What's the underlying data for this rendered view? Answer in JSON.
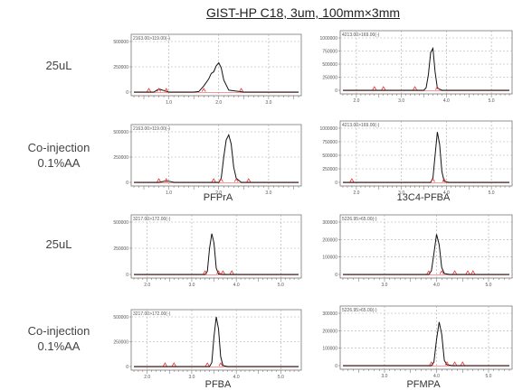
{
  "title": "GIST-HP C18, 3um, 100mm×3mm",
  "row_labels": [
    {
      "line1": "25uL",
      "line2": ""
    },
    {
      "line1": "Co-injection",
      "line2": "0.1%AA"
    },
    {
      "line1": "25uL",
      "line2": ""
    },
    {
      "line1": "Co-injection",
      "line2": "0.1%AA"
    }
  ],
  "compound_labels": [
    "PFPrA",
    "13C4-PFBA",
    "PFBA",
    "PFMPA"
  ],
  "chart_data": [
    {
      "type": "line",
      "panel": "row1-left",
      "header": "2163.00>119.00(-)",
      "xlim": [
        0.3,
        3.6
      ],
      "ylim": [
        0,
        500000
      ],
      "xticks": [
        1.0,
        2.0,
        3.0
      ],
      "xtick_labels": [
        "1.0",
        "2.0",
        "3.0"
      ],
      "yticks": [
        0,
        250000,
        500000
      ],
      "ytick_labels": [
        "0",
        "250000",
        "500000"
      ],
      "x": [
        0.3,
        0.7,
        0.75,
        0.8,
        0.9,
        1.0,
        1.1,
        1.5,
        1.6,
        1.7,
        1.8,
        1.85,
        1.9,
        1.95,
        2.0,
        2.05,
        2.1,
        2.2,
        2.5,
        3.6
      ],
      "y": [
        0,
        0,
        15000,
        30000,
        15000,
        0,
        0,
        0,
        5000,
        60000,
        130000,
        185000,
        200000,
        260000,
        290000,
        240000,
        120000,
        20000,
        0,
        0
      ],
      "markers": [
        0.6,
        0.8,
        0.95,
        1.7,
        2.45
      ]
    },
    {
      "type": "line",
      "panel": "row1-right",
      "header": "4213.00>169.00(-)",
      "xlim": [
        1.7,
        5.4
      ],
      "ylim": [
        0,
        1000000
      ],
      "xticks": [
        2.0,
        3.0,
        4.0,
        5.0
      ],
      "xtick_labels": [
        "2.0",
        "3.0",
        "4.0",
        "5.0"
      ],
      "yticks": [
        0,
        250000,
        500000,
        750000,
        1000000
      ],
      "ytick_labels": [
        "0",
        "250000",
        "500000",
        "750000",
        "1000000"
      ],
      "x": [
        1.7,
        3.5,
        3.55,
        3.6,
        3.65,
        3.7,
        3.75,
        3.8,
        3.9,
        5.4
      ],
      "y": [
        0,
        0,
        50000,
        300000,
        720000,
        800000,
        350000,
        40000,
        0,
        0
      ],
      "markers": [
        2.4,
        2.6,
        3.3,
        3.8
      ]
    },
    {
      "type": "line",
      "panel": "row2-left",
      "header": "2163.00>119.00(-)",
      "xlim": [
        0.3,
        3.6
      ],
      "ylim": [
        0,
        500000
      ],
      "xticks": [
        1.0,
        2.0,
        3.0
      ],
      "xtick_labels": [
        "1.0",
        "2.0",
        "3.0"
      ],
      "yticks": [
        0,
        250000,
        500000
      ],
      "ytick_labels": [
        "0",
        "250000",
        "500000"
      ],
      "x": [
        0.3,
        0.8,
        0.9,
        1.0,
        1.1,
        2.0,
        2.05,
        2.1,
        2.15,
        2.2,
        2.25,
        2.3,
        2.35,
        2.45,
        2.6,
        3.6
      ],
      "y": [
        0,
        0,
        10000,
        12000,
        0,
        0,
        40000,
        250000,
        420000,
        470000,
        380000,
        150000,
        40000,
        0,
        0,
        0
      ],
      "markers": [
        0.8,
        0.95,
        1.9,
        2.05,
        2.35,
        2.6
      ]
    },
    {
      "type": "line",
      "panel": "row2-right",
      "header": "4213.00>169.00(-)",
      "xlim": [
        1.7,
        5.4
      ],
      "ylim": [
        0,
        1000000
      ],
      "xticks": [
        2.0,
        3.0,
        4.0,
        5.0
      ],
      "xtick_labels": [
        "2.0",
        "3.0",
        "4.0",
        "5.0"
      ],
      "yticks": [
        0,
        250000,
        500000,
        750000,
        1000000
      ],
      "ytick_labels": [
        "0",
        "250000",
        "500000",
        "750000",
        "1000000"
      ],
      "x": [
        1.7,
        3.65,
        3.7,
        3.75,
        3.8,
        3.85,
        3.9,
        3.95,
        4.05,
        5.4
      ],
      "y": [
        0,
        0,
        80000,
        500000,
        930000,
        700000,
        200000,
        20000,
        0,
        0
      ],
      "markers": [
        1.9,
        3.7,
        3.95
      ]
    },
    {
      "type": "line",
      "panel": "row3-left",
      "header": "3217.00>172.00(-)",
      "xlim": [
        1.7,
        5.4
      ],
      "ylim": [
        0,
        500000
      ],
      "xticks": [
        2.0,
        3.0,
        4.0,
        5.0
      ],
      "xtick_labels": [
        "2.0",
        "3.0",
        "4.0",
        "5.0"
      ],
      "yticks": [
        0,
        250000,
        500000
      ],
      "ytick_labels": [
        "0",
        "250000",
        "500000"
      ],
      "x": [
        1.7,
        3.3,
        3.35,
        3.4,
        3.45,
        3.5,
        3.55,
        3.6,
        3.7,
        5.4
      ],
      "y": [
        0,
        0,
        30000,
        250000,
        390000,
        300000,
        60000,
        5000,
        0,
        0
      ],
      "markers": [
        3.3,
        3.6,
        3.7,
        3.9
      ]
    },
    {
      "type": "line",
      "panel": "row3-right",
      "header": "5226.95>65.00(-)",
      "xlim": [
        2.2,
        5.4
      ],
      "ylim": [
        0,
        300000
      ],
      "xticks": [
        3.0,
        4.0,
        5.0
      ],
      "xtick_labels": [
        "3.0",
        "4.0",
        "5.0"
      ],
      "yticks": [
        0,
        100000,
        200000,
        300000
      ],
      "ytick_labels": [
        "0",
        "100000",
        "200000",
        "300000"
      ],
      "x": [
        2.2,
        3.85,
        3.9,
        3.95,
        4.0,
        4.05,
        4.1,
        4.15,
        4.25,
        5.4
      ],
      "y": [
        0,
        0,
        20000,
        120000,
        230000,
        170000,
        40000,
        5000,
        0,
        0
      ],
      "markers": [
        3.85,
        4.1,
        4.35,
        4.6,
        4.7
      ]
    },
    {
      "type": "line",
      "panel": "row4-left",
      "header": "3217.00>172.00(-)",
      "xlim": [
        1.7,
        5.4
      ],
      "ylim": [
        0,
        500000
      ],
      "xticks": [
        2.0,
        3.0,
        4.0,
        5.0
      ],
      "xtick_labels": [
        "2.0",
        "3.0",
        "4.0",
        "5.0"
      ],
      "yticks": [
        0,
        250000,
        500000
      ],
      "ytick_labels": [
        "0",
        "250000",
        "500000"
      ],
      "x": [
        1.7,
        3.4,
        3.45,
        3.5,
        3.55,
        3.6,
        3.65,
        3.7,
        3.8,
        5.4
      ],
      "y": [
        0,
        0,
        40000,
        300000,
        500000,
        380000,
        100000,
        10000,
        0,
        0
      ],
      "markers": [
        2.4,
        2.6,
        3.35,
        3.65
      ]
    },
    {
      "type": "line",
      "panel": "row4-right",
      "header": "5226.95>65.00(-)",
      "xlim": [
        2.2,
        5.4
      ],
      "ylim": [
        0,
        300000
      ],
      "xticks": [
        3.0,
        4.0,
        5.0
      ],
      "xtick_labels": [
        "3.0",
        "4.0",
        "5.0"
      ],
      "yticks": [
        0,
        100000,
        200000,
        300000
      ],
      "ytick_labels": [
        "0",
        "100000",
        "200000",
        "300000"
      ],
      "x": [
        2.2,
        3.9,
        3.95,
        4.0,
        4.05,
        4.1,
        4.15,
        4.2,
        4.3,
        5.4
      ],
      "y": [
        0,
        0,
        20000,
        150000,
        250000,
        180000,
        30000,
        5000,
        0,
        0
      ],
      "markers": [
        3.9,
        4.2,
        4.35,
        4.5
      ]
    }
  ]
}
